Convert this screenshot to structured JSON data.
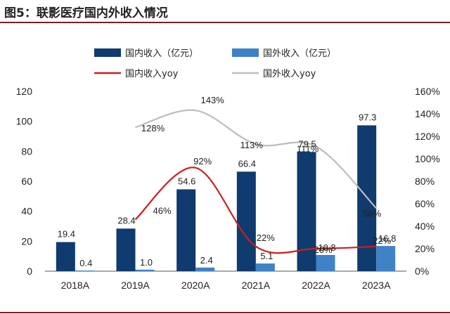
{
  "header": {
    "title": "图5：联影医疗国内外收入情况"
  },
  "chart_data": {
    "type": "bar",
    "categories": [
      "2018A",
      "2019A",
      "2020A",
      "2021A",
      "2022A",
      "2023A"
    ],
    "series": [
      {
        "name": "国内收入（亿元）",
        "kind": "bar",
        "axis": "left",
        "color": "#0f3b6e",
        "values": [
          19.4,
          28.4,
          54.6,
          66.4,
          79.5,
          97.3
        ],
        "labels": [
          "19.4",
          "28.4",
          "54.6",
          "66.4",
          "79.5",
          "97.3"
        ]
      },
      {
        "name": "国外收入（亿元）",
        "kind": "bar",
        "axis": "left",
        "color": "#3f82c6",
        "values": [
          0.4,
          1.0,
          2.4,
          5.1,
          10.8,
          16.8
        ],
        "labels": [
          "0.4",
          "1.0",
          "2.4",
          "5.1",
          "10.8",
          "16.8"
        ]
      },
      {
        "name": "国内收入yoy",
        "kind": "line",
        "axis": "right",
        "color": "#cc1f1f",
        "values": [
          null,
          46,
          92,
          22,
          20,
          22
        ],
        "labels": [
          "",
          "46%",
          "92%",
          "22%",
          "20%",
          "22%"
        ]
      },
      {
        "name": "国外收入yoy",
        "kind": "line",
        "axis": "right",
        "color": "#bdbdbd",
        "values": [
          null,
          128,
          143,
          113,
          111,
          56
        ],
        "labels": [
          "",
          "128%",
          "143%",
          "113%",
          "111%",
          "56%"
        ]
      }
    ],
    "ylim_left": [
      0,
      120
    ],
    "yticks_left": [
      "0",
      "20",
      "40",
      "60",
      "80",
      "100",
      "120"
    ],
    "ylim_right": [
      0,
      160
    ],
    "yticks_right": [
      "0%",
      "20%",
      "40%",
      "60%",
      "80%",
      "100%",
      "120%",
      "140%",
      "160%"
    ],
    "grid": false,
    "legend_position": "top"
  }
}
